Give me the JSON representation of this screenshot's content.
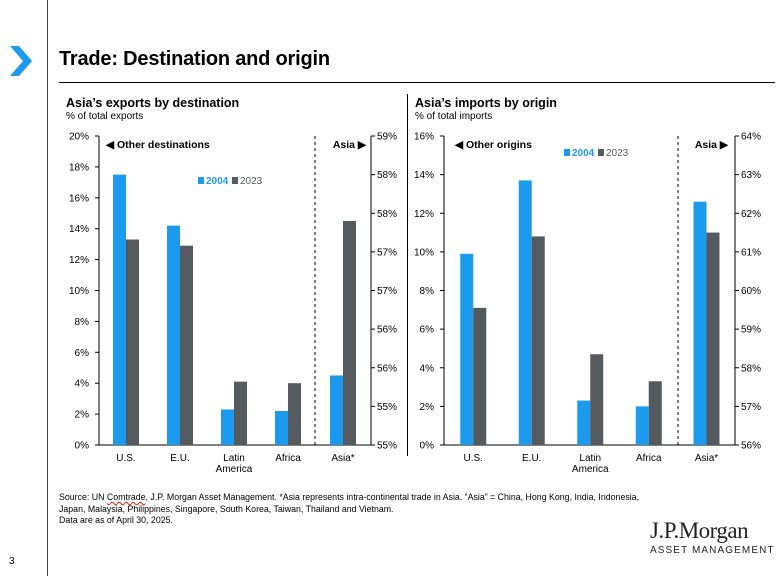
{
  "slide": {
    "title": "Trade: Destination and origin",
    "page_number": "3",
    "source_before": "Source: UN ",
    "source_underlined": "Comtrade",
    "source_after": ", J.P. Morgan Asset Management. *Asia represents intra-continental trade in Asia. “Asia” = China, Hong Kong, India, Indonesia, Japan, Malaysia, Philippines, Singapore, South Korea, Taiwan, Thailand and Vietnam.",
    "data_note": "Data are as of April 30, 2025.",
    "logo_main": "J.P.Morgan",
    "logo_sub": "ASSET MANAGEMENT"
  },
  "colors": {
    "series_2004": "#1b9aee",
    "series_2023": "#555a5e",
    "axis": "#000000"
  },
  "chart_data": [
    {
      "id": "exports",
      "type": "bar",
      "title": "Asia’s exports by destination",
      "subtitle": "% of total exports",
      "categories": [
        "U.S.",
        "E.U.",
        "Latin America",
        "Africa",
        "Asia*"
      ],
      "series": [
        {
          "name": "2004",
          "values": [
            17.5,
            14.2,
            2.3,
            2.2,
            55.9
          ]
        },
        {
          "name": "2023",
          "values": [
            13.3,
            12.9,
            4.1,
            4.0,
            57.9
          ]
        }
      ],
      "left_axis": {
        "min": 0,
        "max": 20,
        "ticks": [
          "0%",
          "2%",
          "4%",
          "6%",
          "8%",
          "10%",
          "12%",
          "14%",
          "16%",
          "18%",
          "20%"
        ]
      },
      "right_axis": {
        "min": 55,
        "max": 59,
        "ticks": [
          "55%",
          "55%",
          "56%",
          "56%",
          "57%",
          "57%",
          "58%",
          "58%",
          "59%"
        ]
      },
      "right_axis_categories": [
        4
      ],
      "annotation_left": "◀ Other destinations",
      "annotation_right": "Asia ▶",
      "legend_placement": "upper-middle"
    },
    {
      "id": "imports",
      "type": "bar",
      "title": "Asia’s imports by origin",
      "subtitle": "% of total imports",
      "categories": [
        "U.S.",
        "E.U.",
        "Latin America",
        "Africa",
        "Asia*"
      ],
      "series": [
        {
          "name": "2004",
          "values": [
            9.9,
            13.7,
            2.3,
            2.0,
            62.3
          ]
        },
        {
          "name": "2023",
          "values": [
            7.1,
            10.8,
            4.7,
            3.3,
            61.5
          ]
        }
      ],
      "left_axis": {
        "min": 0,
        "max": 16,
        "ticks": [
          "0%",
          "2%",
          "4%",
          "6%",
          "8%",
          "10%",
          "12%",
          "14%",
          "16%"
        ]
      },
      "right_axis": {
        "min": 56,
        "max": 64,
        "ticks": [
          "56%",
          "57%",
          "58%",
          "59%",
          "60%",
          "61%",
          "62%",
          "63%",
          "64%"
        ]
      },
      "right_axis_categories": [
        4
      ],
      "annotation_left": "◀ Other origins",
      "annotation_right": "Asia ▶",
      "legend_placement": "top-center"
    }
  ]
}
